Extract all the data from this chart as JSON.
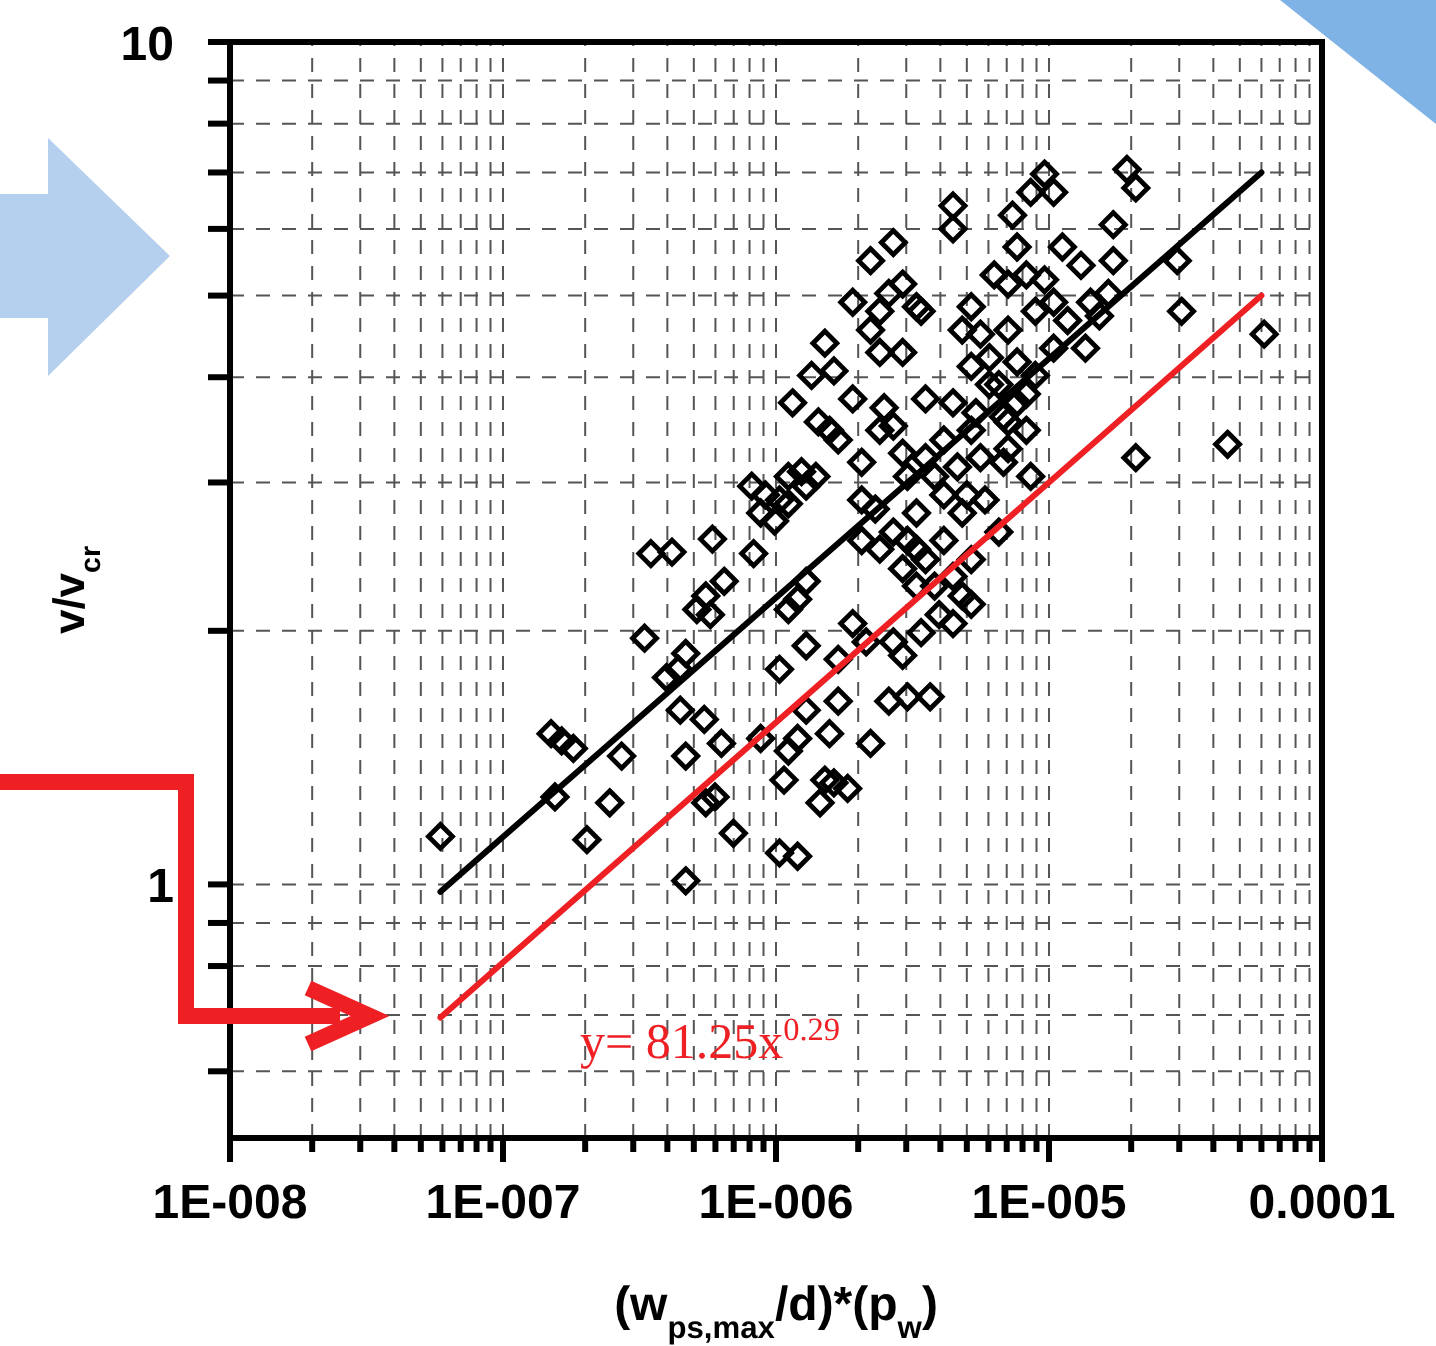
{
  "chart_data": {
    "type": "scatter",
    "xlabel": "(w$_{ps,max}$/d)*(p$_{w}$)",
    "ylabel": "v/v$_{cr}$",
    "log": "xy",
    "grid": true,
    "xlim": [
      1e-08,
      0.0001
    ],
    "ylim": [
      0.5,
      10
    ],
    "xticks": [
      {
        "value": 1e-08,
        "label": "1E-008"
      },
      {
        "value": 2e-08,
        "label": null
      },
      {
        "value": 3e-08,
        "label": null
      },
      {
        "value": 4e-08,
        "label": null
      },
      {
        "value": 5e-08,
        "label": null
      },
      {
        "value": 6e-08,
        "label": null
      },
      {
        "value": 7e-08,
        "label": null
      },
      {
        "value": 8e-08,
        "label": null
      },
      {
        "value": 9e-08,
        "label": null
      },
      {
        "value": 1e-07,
        "label": "1E-007"
      },
      {
        "value": 2e-07,
        "label": null
      },
      {
        "value": 3e-07,
        "label": null
      },
      {
        "value": 4e-07,
        "label": null
      },
      {
        "value": 5e-07,
        "label": null
      },
      {
        "value": 6e-07,
        "label": null
      },
      {
        "value": 7e-07,
        "label": null
      },
      {
        "value": 8e-07,
        "label": null
      },
      {
        "value": 9e-07,
        "label": null
      },
      {
        "value": 1e-06,
        "label": "1E-006"
      },
      {
        "value": 2e-06,
        "label": null
      },
      {
        "value": 3e-06,
        "label": null
      },
      {
        "value": 4e-06,
        "label": null
      },
      {
        "value": 5e-06,
        "label": null
      },
      {
        "value": 6e-06,
        "label": null
      },
      {
        "value": 7e-06,
        "label": null
      },
      {
        "value": 8e-06,
        "label": null
      },
      {
        "value": 9e-06,
        "label": null
      },
      {
        "value": 1e-05,
        "label": "1E-005"
      },
      {
        "value": 2e-05,
        "label": null
      },
      {
        "value": 3e-05,
        "label": null
      },
      {
        "value": 4e-05,
        "label": null
      },
      {
        "value": 5e-05,
        "label": null
      },
      {
        "value": 6e-05,
        "label": null
      },
      {
        "value": 7e-05,
        "label": null
      },
      {
        "value": 8e-05,
        "label": null
      },
      {
        "value": 9e-05,
        "label": null
      },
      {
        "value": 0.0001,
        "label": "0.0001"
      }
    ],
    "yticks": [
      {
        "value": 0.6,
        "label": null
      },
      {
        "value": 0.7,
        "label": null
      },
      {
        "value": 0.8,
        "label": null
      },
      {
        "value": 0.9,
        "label": null
      },
      1,
      {
        "value": 2,
        "label": null
      },
      {
        "value": 3,
        "label": null
      },
      {
        "value": 4,
        "label": null
      },
      {
        "value": 5,
        "label": null
      },
      {
        "value": 6,
        "label": null
      },
      {
        "value": 7,
        "label": null
      },
      {
        "value": 8,
        "label": null
      },
      {
        "value": 9,
        "label": null
      },
      10
    ],
    "annotations": [
      "y= 81.25x$^{0.29}$"
    ],
    "series": [
      {
        "color": "#000000",
        "marker": "diamond",
        "x": [
          5.9e-08,
          1.5e-07,
          1.64e-07,
          1.81e-07,
          1.55e-07,
          2.03e-07,
          2.46e-07,
          2.72e-07,
          3.3e-07,
          3.48e-07,
          4.16e-07,
          5.85e-07,
          4.67e-07,
          4.39e-07,
          3.97e-07,
          4.46e-07,
          5.46e-07,
          4.67e-07,
          6.31e-07,
          5.53e-07,
          5.98e-07,
          6.98e-07,
          4.67e-07,
          5.13e-07,
          5.53e-07,
          6.46e-07,
          5.75e-07,
          8.28e-07,
          8.79e-07,
          8.15e-07,
          9.14e-07,
          1.03e-06,
          1.11e-06,
          1.24e-06,
          1.29e-06,
          1.4e-06,
          9.88e-07,
          1.11e-06,
          1.2e-06,
          1.29e-06,
          1.15e-06,
          1.35e-06,
          1.51e-06,
          1.63e-06,
          1.91e-06,
          1.43e-06,
          1.57e-06,
          1.69e-06,
          2.06e-06,
          1.91e-06,
          2.22e-06,
          2.69e-06,
          2.4e-06,
          2.59e-06,
          2.91e-06,
          3.27e-06,
          2.4e-06,
          2.91e-06,
          3.4e-06,
          2.49e-06,
          2.69e-06,
          2.91e-06,
          3.03e-06,
          3.53e-06,
          2.69e-06,
          3.03e-06,
          2.06e-06,
          2.4e-06,
          2.91e-06,
          3.27e-06,
          3.53e-06,
          4.12e-06,
          3.81e-06,
          4.81e-06,
          5.19e-06,
          4.45e-06,
          1.11e-06,
          1.29e-06,
          1.03e-06,
          1.91e-06,
          1.69e-06,
          2.14e-06,
          2.69e-06,
          2.91e-06,
          3.03e-06,
          3.67e-06,
          2.59e-06,
          1.29e-06,
          1.2e-06,
          1.11e-06,
          1.69e-06,
          1.57e-06,
          1.51e-06,
          1.63e-06,
          1.83e-06,
          2.22e-06,
          1.45e-06,
          1.07e-06,
          1.03e-06,
          1.2e-06,
          8.79e-07,
          4.45e-06,
          4.45e-06,
          5.19e-06,
          4.81e-06,
          5.61e-06,
          6.05e-06,
          7.08e-06,
          6.55e-06,
          5.4e-06,
          7.08e-06,
          7.64e-06,
          8.26e-06,
          8.57e-06,
          6.81e-06,
          5.19e-06,
          4.45e-06,
          4.62e-06,
          4.12e-06,
          4.81e-06,
          5.83e-06,
          6.55e-06,
          6.3e-06,
          7.08e-06,
          8.26e-06,
          8.91e-06,
          1.04e-05,
          1.12e-05,
          1.31e-05,
          1.17e-05,
          1.42e-05,
          1.53e-05,
          1.65e-05,
          1.36e-05,
          7.35e-06,
          8.57e-06,
          9.63e-06,
          1.04e-05,
          1.72e-05,
          1.72e-05,
          1.93e-05,
          2.08e-05,
          2.95e-05,
          3.06e-05,
          6.14e-05,
          2.08e-05,
          4.51e-05,
          3.27e-06,
          3.81e-06,
          5.19e-06,
          6.05e-06,
          8.91e-06,
          7.64e-06,
          5.61e-06,
          7.08e-06,
          3.53e-06,
          4.12e-06,
          2.31e-06,
          2.06e-06,
          3.27e-06,
          5.19e-06,
          4.45e-06,
          3.96e-06,
          3.4e-06,
          2.4e-06,
          2.22e-06,
          5e-06,
          7.64e-06,
          9.63e-06,
          6.81e-06,
          8.26e-06,
          1.04e-05
        ],
        "values": [
          1.14,
          1.51,
          1.48,
          1.45,
          1.27,
          1.13,
          1.25,
          1.42,
          1.96,
          2.47,
          2.48,
          2.57,
          1.88,
          1.8,
          1.76,
          1.61,
          1.57,
          1.42,
          1.47,
          1.25,
          1.27,
          1.15,
          1.01,
          2.12,
          2.2,
          2.29,
          2.09,
          2.47,
          2.76,
          2.97,
          2.9,
          2.86,
          3.05,
          3.09,
          2.97,
          3.05,
          2.7,
          2.83,
          2.18,
          2.29,
          3.73,
          4.02,
          4.39,
          4.07,
          3.77,
          3.54,
          3.46,
          3.37,
          3.17,
          4.91,
          5.5,
          5.78,
          4.79,
          5.03,
          5.16,
          4.85,
          4.28,
          4.28,
          4.79,
          3.68,
          3.5,
          3.25,
          3.05,
          3.77,
          2.62,
          2.56,
          2.56,
          2.5,
          2.37,
          2.26,
          2.43,
          2.56,
          2.26,
          2.2,
          2.15,
          2.32,
          2.12,
          1.92,
          1.8,
          2.04,
          1.85,
          1.94,
          1.94,
          1.87,
          1.67,
          1.67,
          1.65,
          1.61,
          1.49,
          1.44,
          1.65,
          1.51,
          1.33,
          1.32,
          1.3,
          1.47,
          1.25,
          1.33,
          1.09,
          1.08,
          1.49,
          6.39,
          6.0,
          4.85,
          4.55,
          4.5,
          4.22,
          4.55,
          3.92,
          3.63,
          3.54,
          3.73,
          3.46,
          3.05,
          3.17,
          3.46,
          3.73,
          3.13,
          2.9,
          2.76,
          2.86,
          2.62,
          5.29,
          5.16,
          5.29,
          4.79,
          4.91,
          5.71,
          5.43,
          4.67,
          4.91,
          4.73,
          5.03,
          4.33,
          6.23,
          6.63,
          6.97,
          6.63,
          6.07,
          5.5,
          7.06,
          6.71,
          5.5,
          4.79,
          4.5,
          3.21,
          3.33,
          2.76,
          3.05,
          4.12,
          3.92,
          4.02,
          4.17,
          3.21,
          3.29,
          3.21,
          3.37,
          2.79,
          2.86,
          2.5,
          2.43,
          2.04,
          2.09,
          1.99,
          3.46,
          4.55,
          2.9,
          5.71,
          5.22,
          3.59,
          3.82,
          4.33
        ]
      },
      {
        "type": "line",
        "color": "#000000",
        "marker": "none",
        "line_style": "solid",
        "x": [
          5.9e-08,
          6e-05
        ],
        "values": [
          0.98,
          7.0
        ]
      },
      {
        "type": "line",
        "color": "#ee2024",
        "marker": "none",
        "line_style": "solid",
        "x": [
          5.9e-08,
          6e-05
        ],
        "values": [
          0.695,
          5.0
        ]
      }
    ]
  }
}
